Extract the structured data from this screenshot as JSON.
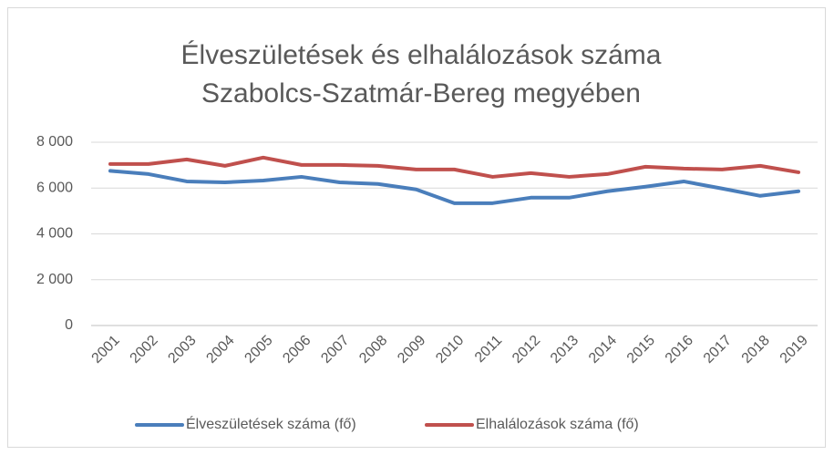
{
  "chart_data": {
    "type": "line",
    "title": [
      "Élveszületések és elhalálozások száma",
      "Szabolcs-Szatmár-Bereg megyében"
    ],
    "categories": [
      "2001",
      "2002",
      "2003",
      "2004",
      "2005",
      "2006",
      "2007",
      "2008",
      "2009",
      "2010",
      "2011",
      "2012",
      "2013",
      "2014",
      "2015",
      "2016",
      "2017",
      "2018",
      "2019"
    ],
    "series": [
      {
        "name": "Élveszületések száma (fő)",
        "color": "#4a7ebb",
        "values": [
          6750,
          6610,
          6290,
          6250,
          6330,
          6490,
          6250,
          6180,
          5940,
          5340,
          5340,
          5580,
          5580,
          5860,
          6060,
          6290,
          5980,
          5660,
          5860
        ]
      },
      {
        "name": "Elhalálozások száma (fő)",
        "color": "#c0504d",
        "values": [
          7050,
          7050,
          7250,
          6970,
          7330,
          7010,
          7010,
          6970,
          6810,
          6810,
          6490,
          6650,
          6490,
          6610,
          6930,
          6850,
          6810,
          6970,
          6690
        ]
      }
    ],
    "ylim": [
      0,
      8000
    ],
    "yticks": [
      0,
      {
        "value": 2000,
        "label": "2 000"
      },
      {
        "value": 4000,
        "label": "4 000"
      },
      {
        "value": 6000,
        "label": "6 000"
      },
      {
        "value": 8000,
        "label": "8 000"
      }
    ],
    "grid": true,
    "legend": "bottom"
  }
}
